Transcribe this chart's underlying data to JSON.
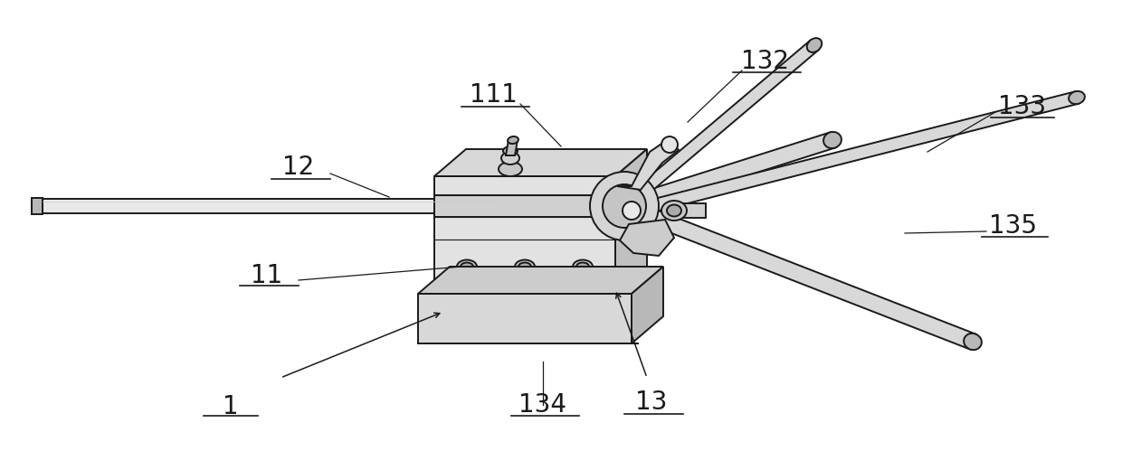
{
  "bg_color": "#ffffff",
  "line_color": "#1a1a1a",
  "fig_width": 12.4,
  "fig_height": 4.99,
  "dpi": 100,
  "font_size": 20,
  "lw_main": 1.4,
  "lw_thin": 0.8,
  "gray_light": "#e8e8e8",
  "gray_mid": "#d0d0d0",
  "gray_dark": "#b8b8b8",
  "gray_darker": "#a0a0a0",
  "white": "#ffffff"
}
